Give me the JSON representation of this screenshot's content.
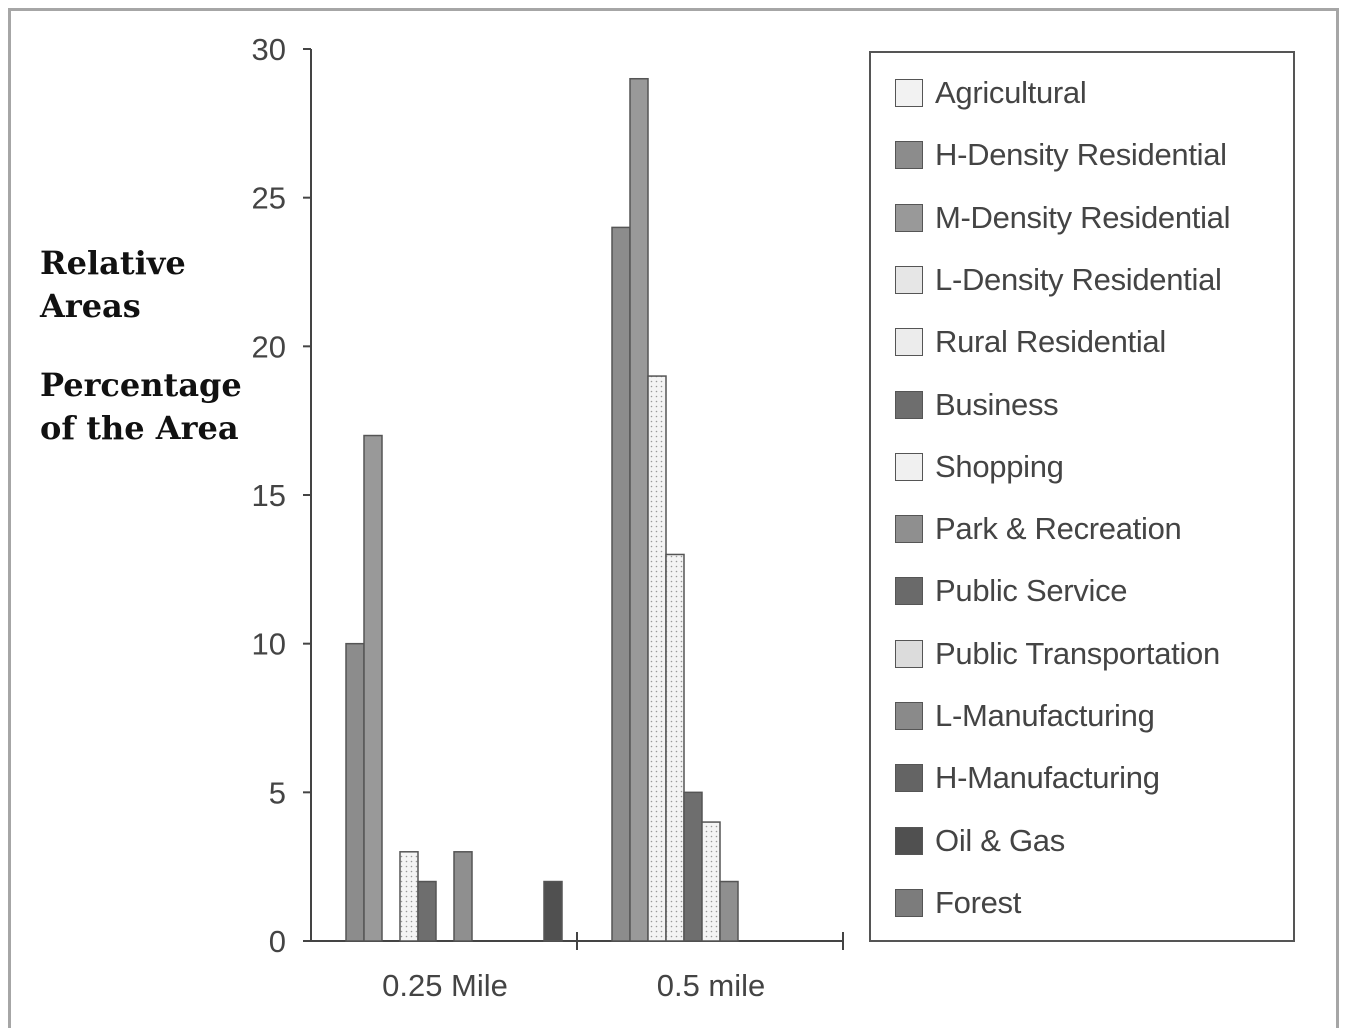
{
  "ylabel": {
    "line1": "Relative",
    "line2": "Areas",
    "line3": "Percentage",
    "line4": "of the Area"
  },
  "chart_data": {
    "type": "bar",
    "categories": [
      "0.25 Mile",
      "0.5 mile"
    ],
    "ylim": [
      0,
      30
    ],
    "yticks": [
      0,
      5,
      10,
      15,
      20,
      25,
      30
    ],
    "grid": false,
    "legend_placement": "right",
    "series": [
      {
        "name": "Agricultural",
        "color": "#f2f2f2",
        "values": [
          0,
          0
        ]
      },
      {
        "name": "H-Density Residential",
        "color": "#8c8c8c",
        "values": [
          10,
          24
        ]
      },
      {
        "name": "M-Density Residential",
        "color": "#999999",
        "values": [
          17,
          29
        ]
      },
      {
        "name": "L-Density Residential",
        "color": "#e6e6e6",
        "values": [
          0,
          19
        ]
      },
      {
        "name": "Rural Residential",
        "color": "#ececec",
        "values": [
          3,
          13
        ]
      },
      {
        "name": "Business",
        "color": "#6e6e6e",
        "values": [
          2,
          5
        ]
      },
      {
        "name": "Shopping",
        "color": "#f0f0f0",
        "values": [
          0,
          4
        ]
      },
      {
        "name": "Park & Recreation",
        "color": "#8f8f8f",
        "values": [
          3,
          2
        ]
      },
      {
        "name": "Public Service",
        "color": "#6a6a6a",
        "values": [
          0,
          0
        ]
      },
      {
        "name": "Public Transportation",
        "color": "#dcdcdc",
        "values": [
          0,
          0
        ]
      },
      {
        "name": "L-Manufacturing",
        "color": "#8a8a8a",
        "values": [
          0,
          0
        ]
      },
      {
        "name": "H-Manufacturing",
        "color": "#646464",
        "values": [
          0,
          0
        ]
      },
      {
        "name": "Oil & Gas",
        "color": "#505050",
        "values": [
          2,
          0
        ]
      },
      {
        "name": "Forest",
        "color": "#7c7c7c",
        "values": [
          0,
          0
        ]
      }
    ]
  }
}
